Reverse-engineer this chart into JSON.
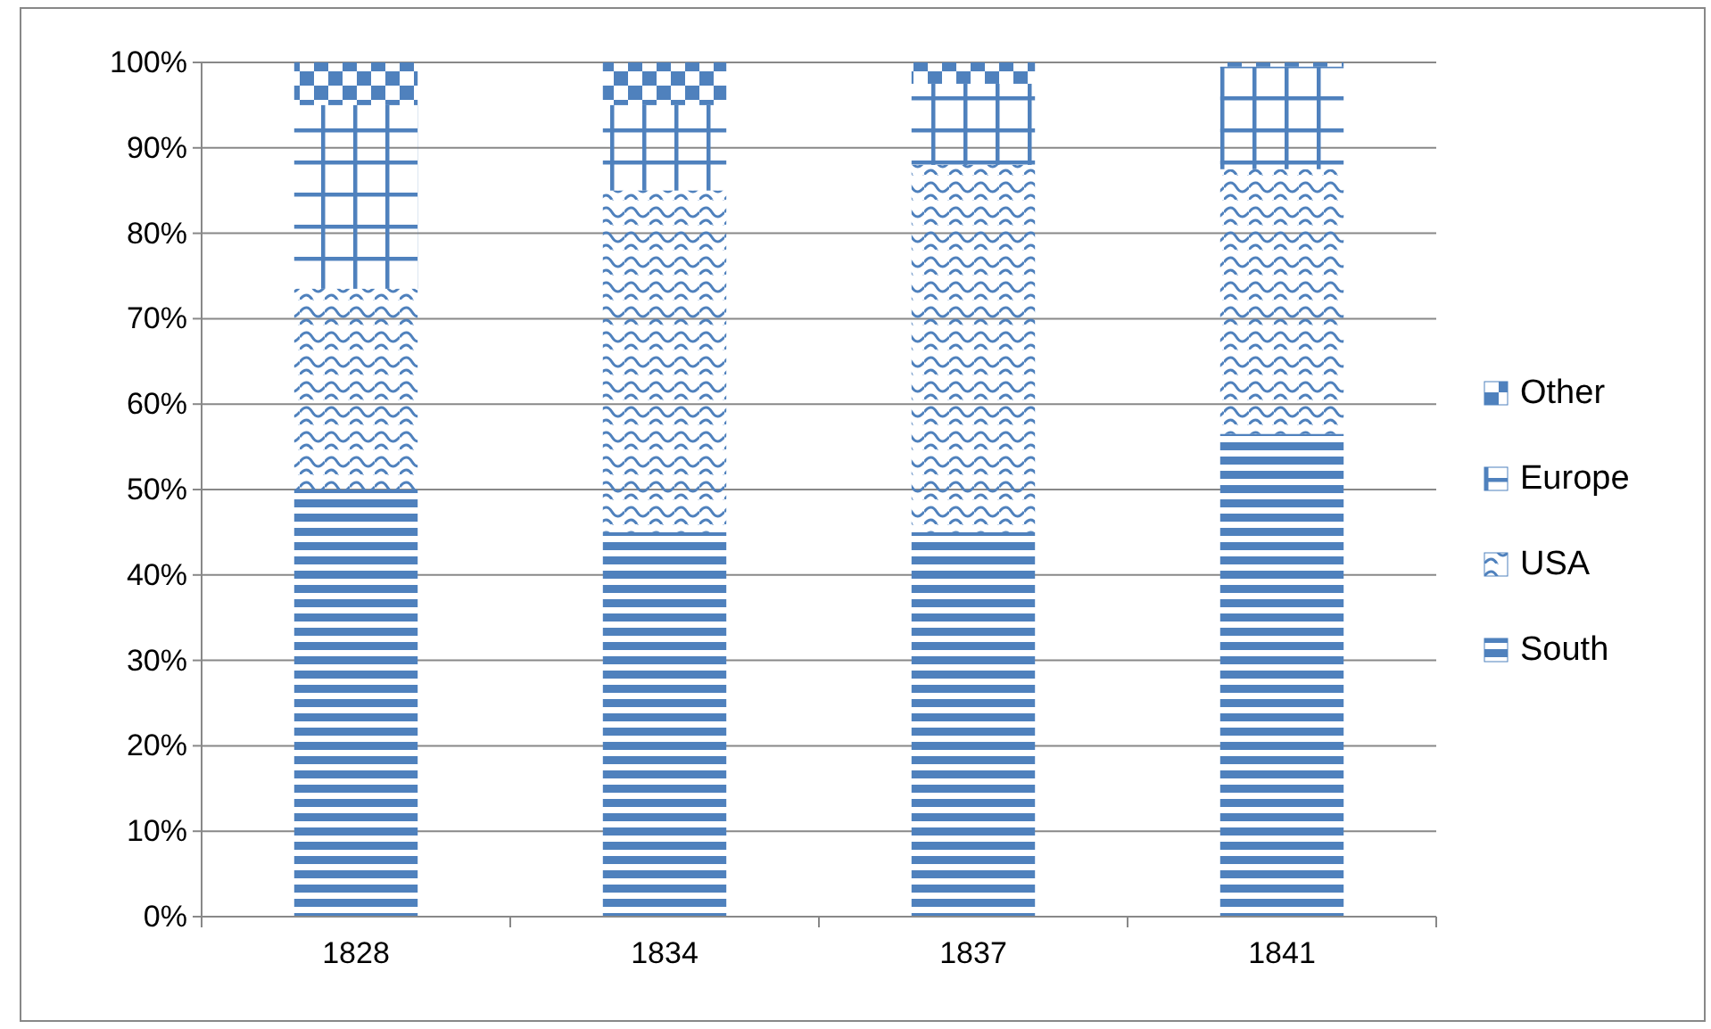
{
  "chart_data": {
    "type": "bar",
    "stacked": true,
    "categories": [
      "1828",
      "1834",
      "1837",
      "1841"
    ],
    "series": [
      {
        "name": "South",
        "color": "#4f81bd",
        "values": [
          50,
          45,
          45,
          56.5
        ]
      },
      {
        "name": "USA",
        "color": "#4f81bd",
        "values": [
          23.5,
          40,
          43,
          31
        ]
      },
      {
        "name": "Europe",
        "color": "#4f81bd",
        "values": [
          21.5,
          10,
          9.5,
          12
        ]
      },
      {
        "name": "Other",
        "color": "#4f81bd",
        "values": [
          5,
          5,
          2.5,
          0.5
        ]
      }
    ],
    "ylim": [
      0,
      100
    ],
    "yticks": [
      {
        "value": 0,
        "label": "0%"
      },
      {
        "value": 10,
        "label": "10%"
      },
      {
        "value": 20,
        "label": "20%"
      },
      {
        "value": 30,
        "label": "30%"
      },
      {
        "value": 40,
        "label": "40%"
      },
      {
        "value": 50,
        "label": "50%"
      },
      {
        "value": 60,
        "label": "60%"
      },
      {
        "value": 70,
        "label": "70%"
      },
      {
        "value": 80,
        "label": "80%"
      },
      {
        "value": 90,
        "label": "90%"
      },
      {
        "value": 100,
        "label": "100%"
      }
    ],
    "grid": "y",
    "legend": "right"
  }
}
